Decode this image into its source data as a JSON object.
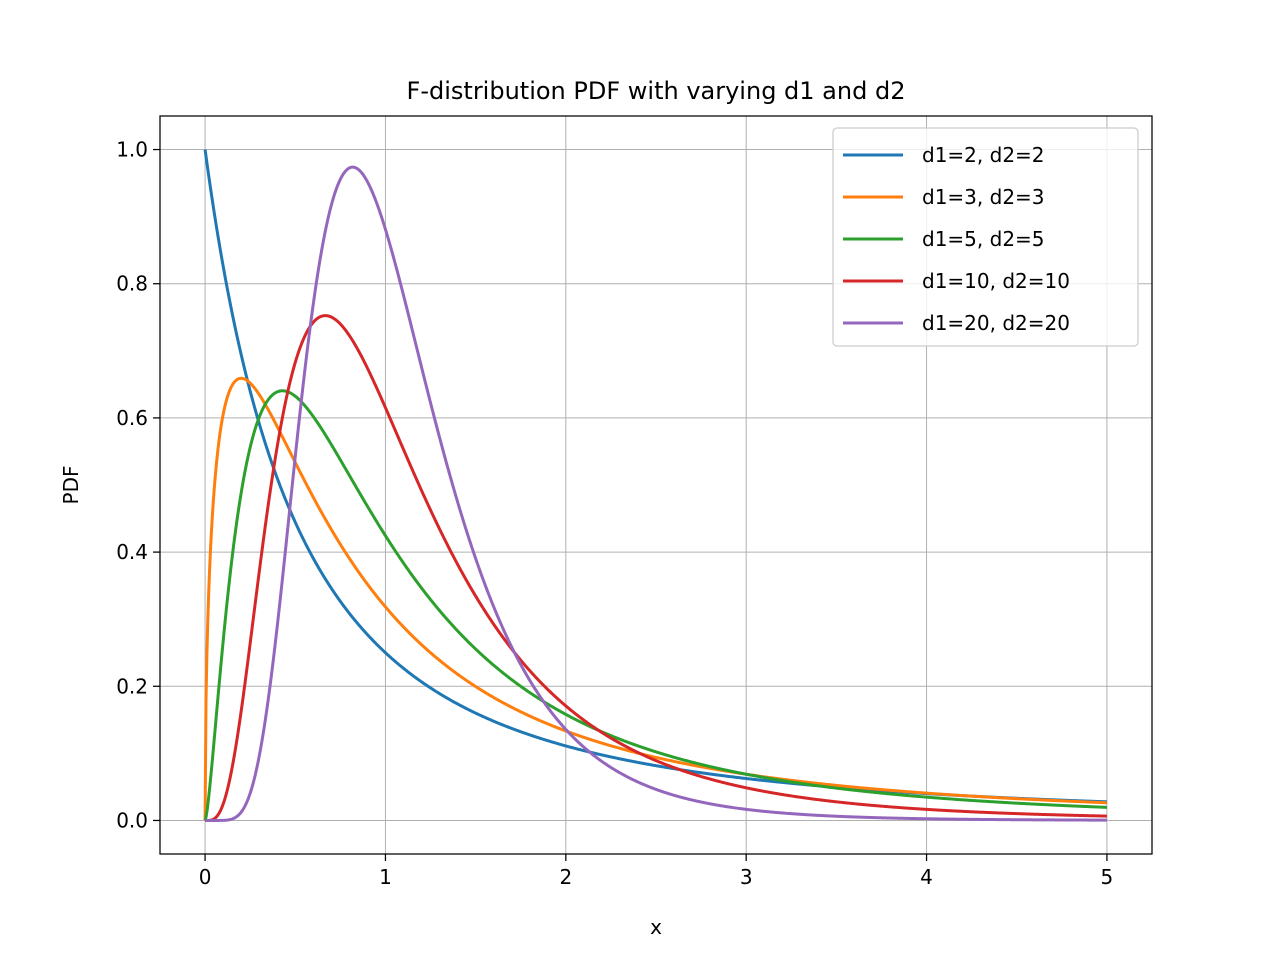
{
  "chart_data": {
    "type": "line",
    "title": "F-distribution PDF with varying d1 and d2",
    "xlabel": "x",
    "ylabel": "PDF",
    "xlim": [
      -0.25,
      5.25
    ],
    "ylim": [
      -0.05,
      1.05
    ],
    "x_ticks": [
      "0",
      "1",
      "2",
      "3",
      "4",
      "5"
    ],
    "y_ticks": [
      "0.0",
      "0.2",
      "0.4",
      "0.6",
      "0.8",
      "1.0"
    ],
    "grid": true,
    "legend_position": "top-right",
    "x_range": [
      0,
      5
    ],
    "series": [
      {
        "name": "d1=2, d2=2",
        "d1": 2,
        "d2": 2,
        "color": "#1f77b4"
      },
      {
        "name": "d1=3, d2=3",
        "d1": 3,
        "d2": 3,
        "color": "#ff7f0e"
      },
      {
        "name": "d1=5, d2=5",
        "d1": 5,
        "d2": 5,
        "color": "#2ca02c"
      },
      {
        "name": "d1=10, d2=10",
        "d1": 10,
        "d2": 10,
        "color": "#d62728"
      },
      {
        "name": "d1=20, d2=20",
        "d1": 20,
        "d2": 20,
        "color": "#9467bd"
      }
    ]
  }
}
